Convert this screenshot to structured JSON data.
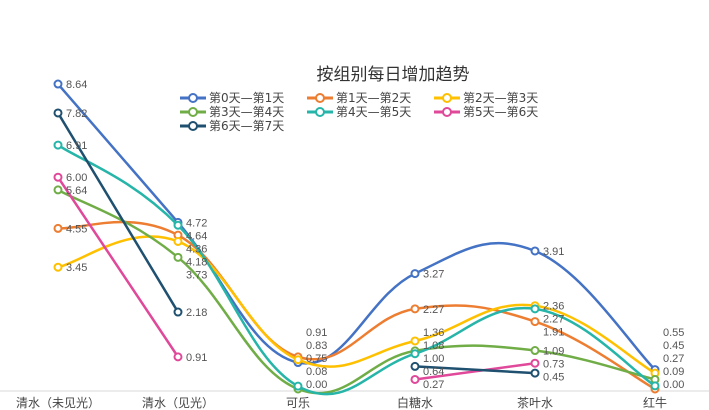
{
  "chart_data": {
    "type": "line",
    "title": "按组别每日增加趋势",
    "xlabel": "",
    "ylabel": "",
    "ylim": [
      0,
      8.64
    ],
    "grid": false,
    "legend_position": "top",
    "categories": [
      "清水（未见光）",
      "清水（见光）",
      "可乐",
      "白糖水",
      "茶叶水",
      "红牛"
    ],
    "series": [
      {
        "name": "第0天—第1天",
        "color": "#4472C4",
        "values": [
          8.64,
          4.72,
          0.75,
          3.27,
          3.91,
          0.55
        ]
      },
      {
        "name": "第1天—第2天",
        "color": "#ED7D31",
        "values": [
          4.55,
          4.36,
          0.91,
          2.27,
          1.91,
          0.0
        ]
      },
      {
        "name": "第2天—第3天",
        "color": "#FFC000",
        "values": [
          3.45,
          4.18,
          0.83,
          1.36,
          2.36,
          0.45
        ]
      },
      {
        "name": "第3天—第4天",
        "color": "#70AD47",
        "values": [
          5.64,
          3.73,
          0.0,
          1.08,
          1.09,
          0.27
        ]
      },
      {
        "name": "第4天—第5天",
        "color": "#26B5A8",
        "values": [
          6.91,
          4.64,
          0.08,
          1.0,
          2.27,
          0.09
        ]
      },
      {
        "name": "第5天—第6天",
        "color": "#E0489A",
        "values": [
          6.0,
          0.91,
          null,
          0.27,
          0.73,
          null
        ]
      },
      {
        "name": "第6天—第7天",
        "color": "#1F5070",
        "values": [
          7.82,
          2.18,
          null,
          0.64,
          0.45,
          null
        ]
      }
    ]
  }
}
